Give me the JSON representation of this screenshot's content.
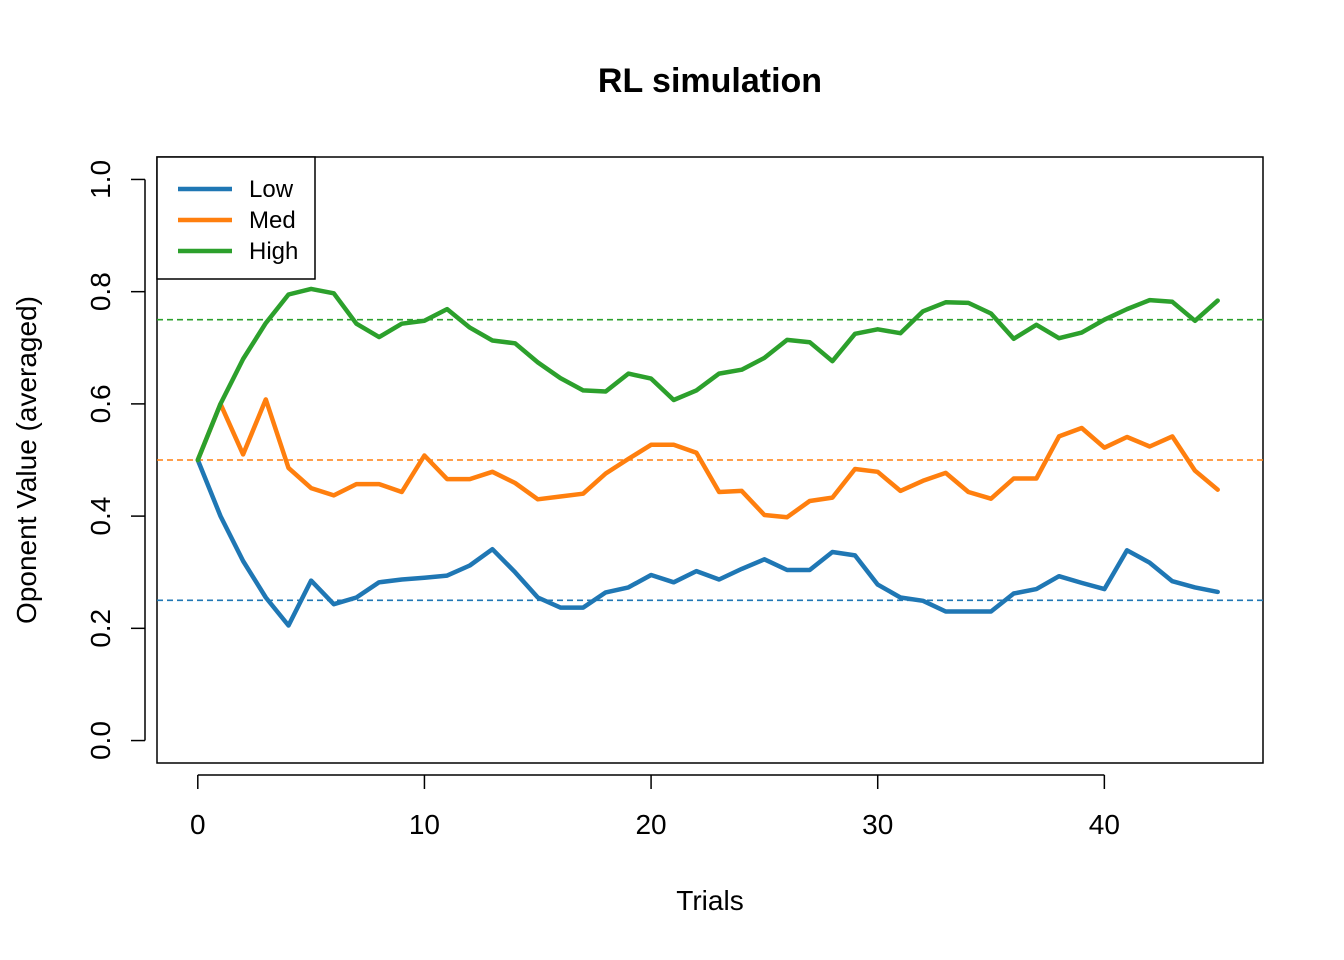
{
  "chart_data": {
    "type": "line",
    "title": "RL simulation",
    "xlabel": "Trials",
    "ylabel": "Oponent Value (averaged)",
    "xlim": [
      -1.8,
      47
    ],
    "ylim": [
      -0.04,
      1.04
    ],
    "x_ticks": [
      0,
      10,
      20,
      30,
      40
    ],
    "y_ticks": [
      0.0,
      0.2,
      0.4,
      0.6,
      0.8,
      1.0
    ],
    "x_tick_labels": [
      "0",
      "10",
      "20",
      "30",
      "40"
    ],
    "y_tick_labels": [
      "0.0",
      "0.2",
      "0.4",
      "0.6",
      "0.8",
      "1.0"
    ],
    "legend_position": "top-left",
    "grid": false,
    "x": [
      0,
      1,
      2,
      3,
      4,
      5,
      6,
      7,
      8,
      9,
      10,
      11,
      12,
      13,
      14,
      15,
      16,
      17,
      18,
      19,
      20,
      21,
      22,
      23,
      24,
      25,
      26,
      27,
      28,
      29,
      30,
      31,
      32,
      33,
      34,
      35,
      36,
      37,
      38,
      39,
      40,
      41,
      42,
      43,
      44,
      45
    ],
    "series": [
      {
        "name": "Low",
        "color": "#1f77b4",
        "values": [
          0.5,
          0.4,
          0.32,
          0.255,
          0.205,
          0.285,
          0.243,
          0.255,
          0.282,
          0.287,
          0.29,
          0.294,
          0.312,
          0.341,
          0.3,
          0.255,
          0.237,
          0.237,
          0.264,
          0.273,
          0.295,
          0.282,
          0.302,
          0.287,
          0.306,
          0.323,
          0.304,
          0.304,
          0.336,
          0.33,
          0.278,
          0.255,
          0.249,
          0.23,
          0.23,
          0.23,
          0.262,
          0.27,
          0.293,
          0.281,
          0.27,
          0.339,
          0.317,
          0.284,
          0.273,
          0.265
        ]
      },
      {
        "name": "Med",
        "color": "#ff7f0e",
        "values": [
          0.5,
          0.6,
          0.51,
          0.608,
          0.486,
          0.45,
          0.437,
          0.457,
          0.457,
          0.443,
          0.508,
          0.466,
          0.466,
          0.479,
          0.459,
          0.43,
          0.435,
          0.44,
          0.476,
          0.502,
          0.527,
          0.527,
          0.513,
          0.443,
          0.445,
          0.402,
          0.398,
          0.427,
          0.433,
          0.484,
          0.479,
          0.445,
          0.463,
          0.477,
          0.443,
          0.431,
          0.467,
          0.467,
          0.542,
          0.557,
          0.522,
          0.541,
          0.524,
          0.542,
          0.481,
          0.447
        ]
      },
      {
        "name": "High",
        "color": "#2ca02c",
        "values": [
          0.5,
          0.6,
          0.68,
          0.744,
          0.795,
          0.805,
          0.797,
          0.743,
          0.719,
          0.743,
          0.748,
          0.769,
          0.736,
          0.713,
          0.708,
          0.674,
          0.646,
          0.624,
          0.622,
          0.654,
          0.645,
          0.607,
          0.624,
          0.654,
          0.661,
          0.682,
          0.714,
          0.71,
          0.676,
          0.725,
          0.733,
          0.726,
          0.765,
          0.781,
          0.78,
          0.761,
          0.716,
          0.741,
          0.717,
          0.727,
          0.75,
          0.769,
          0.785,
          0.782,
          0.748,
          0.784
        ]
      }
    ],
    "reference_lines": [
      {
        "y": 0.25,
        "color": "#1f77b4",
        "style": "dashed"
      },
      {
        "y": 0.5,
        "color": "#ff7f0e",
        "style": "dashed"
      },
      {
        "y": 0.75,
        "color": "#2ca02c",
        "style": "dashed"
      }
    ]
  }
}
